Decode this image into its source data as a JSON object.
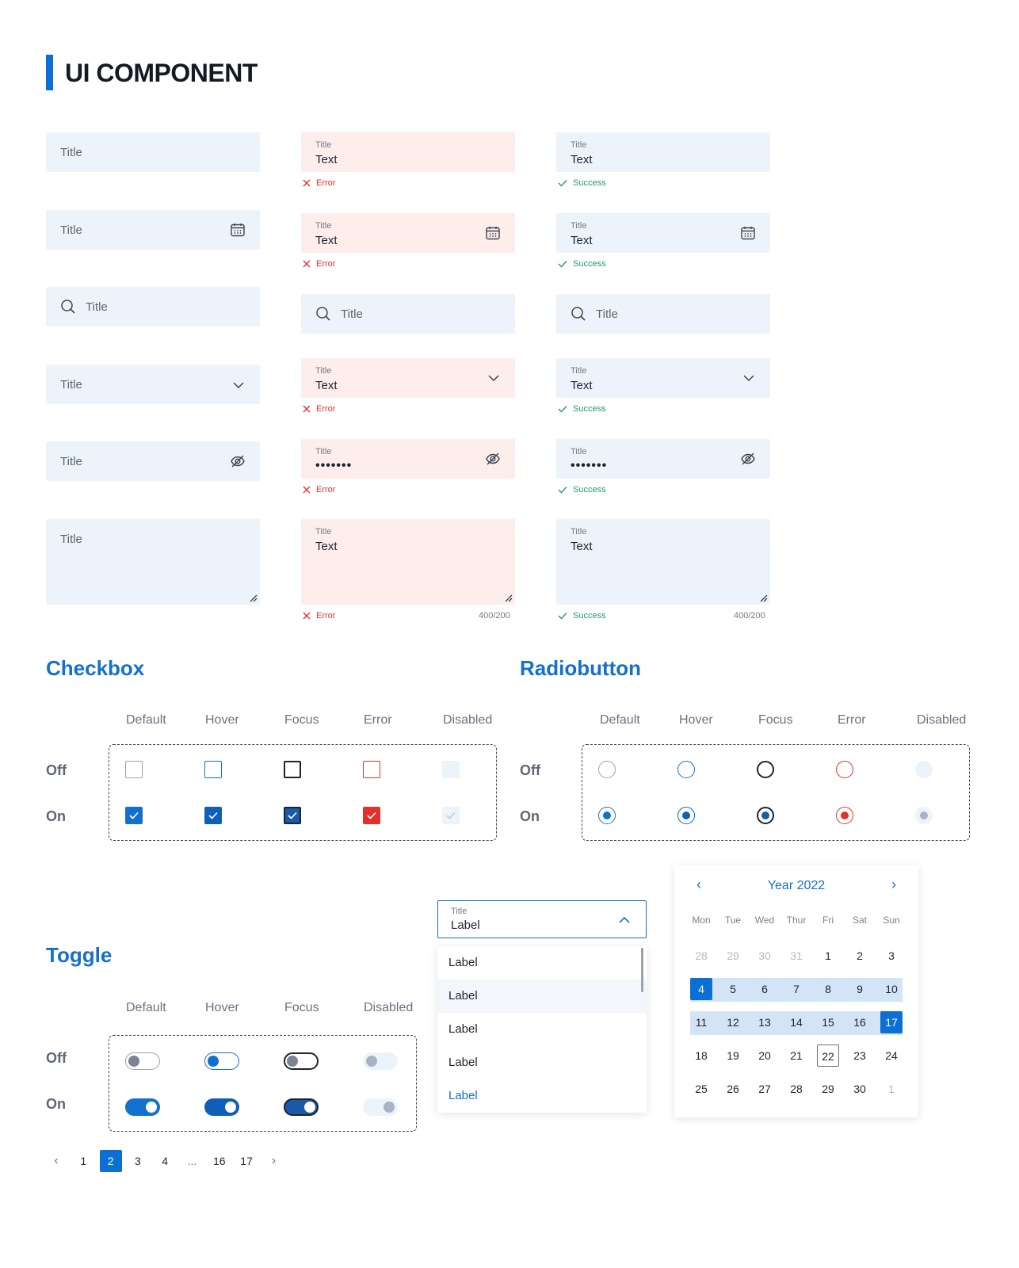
{
  "header": {
    "title": "UI COMPONENT"
  },
  "inputs": {
    "placeholder": "Title",
    "label": "Title",
    "value": "Text",
    "password_mask": "•••••••",
    "error_text": "Error",
    "success_text": "Success",
    "counter": "400/200"
  },
  "checkbox": {
    "title": "Checkbox",
    "columns": [
      "Default",
      "Hover",
      "Focus",
      "Error",
      "Disabled"
    ],
    "rows": [
      "Off",
      "On"
    ]
  },
  "radio": {
    "title": "Radiobutton",
    "columns": [
      "Default",
      "Hover",
      "Focus",
      "Error",
      "Disabled"
    ],
    "rows": [
      "Off",
      "On"
    ]
  },
  "toggle": {
    "title": "Toggle",
    "columns": [
      "Default",
      "Hover",
      "Focus",
      "Disabled"
    ],
    "rows": [
      "Off",
      "On"
    ]
  },
  "dropdown": {
    "label": "Title",
    "value": "Label",
    "options": [
      "Label",
      "Label",
      "Label",
      "Label",
      "Label"
    ],
    "hovered_index": 1,
    "selected_index": 4
  },
  "calendar": {
    "title": "Year 2022",
    "weekdays": [
      "Mon",
      "Tue",
      "Wed",
      "Thur",
      "Fri",
      "Sat",
      "Sun"
    ],
    "weeks": [
      [
        "28",
        "29",
        "30",
        "31",
        "1",
        "2",
        "3"
      ],
      [
        "4",
        "5",
        "6",
        "7",
        "8",
        "9",
        "10"
      ],
      [
        "11",
        "12",
        "13",
        "14",
        "15",
        "16",
        "17"
      ],
      [
        "18",
        "19",
        "20",
        "21",
        "22",
        "23",
        "24"
      ],
      [
        "25",
        "26",
        "27",
        "28",
        "29",
        "30",
        "1"
      ]
    ],
    "range_start": "4",
    "range_end": "17",
    "today": "22"
  },
  "pagination": {
    "prev": "‹",
    "next": "›",
    "pages": [
      "1",
      "2",
      "3",
      "4",
      "...",
      "16",
      "17"
    ],
    "active": "2"
  },
  "colors": {
    "accent": "#0b6fd6",
    "error": "#e0322b",
    "success": "#1f9a6a",
    "field_bg": "#edf3fb",
    "error_bg": "#fdeeec"
  },
  "icons": [
    "calendar-icon",
    "search-icon",
    "chevron-down-icon",
    "eye-off-icon",
    "resize-handle-icon",
    "close-icon",
    "check-icon",
    "chevron-up-icon",
    "chevron-left-icon",
    "chevron-right-icon"
  ]
}
